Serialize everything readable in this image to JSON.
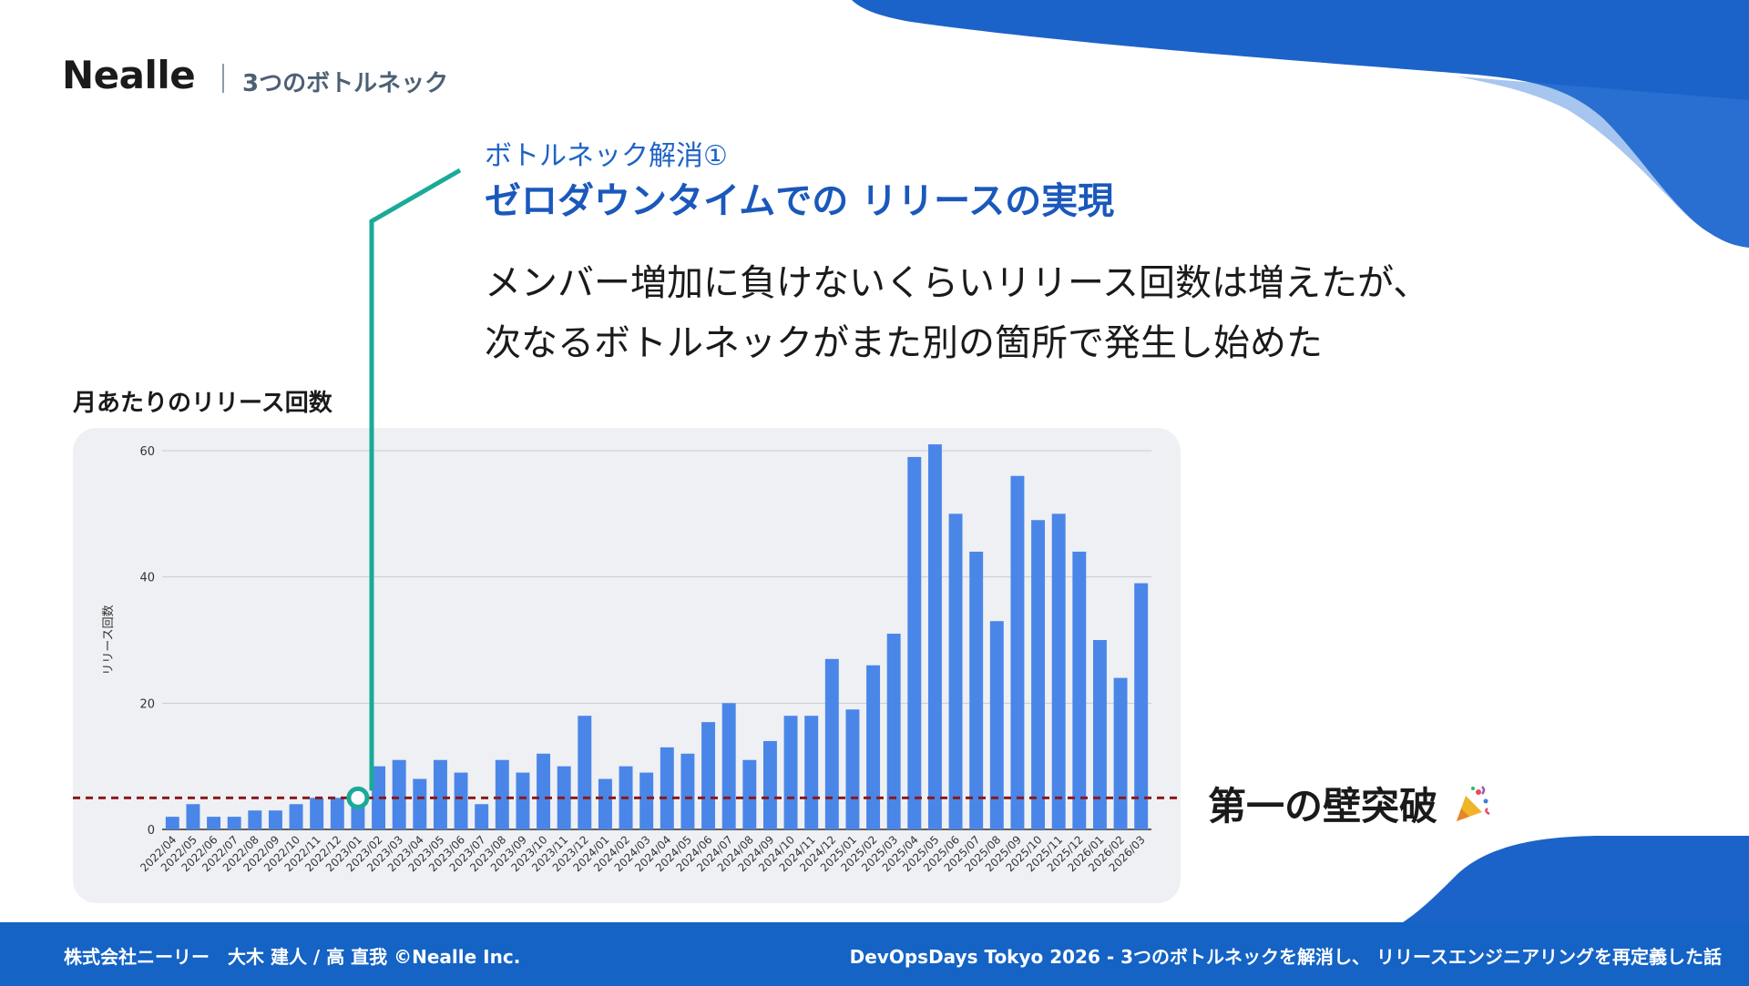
{
  "header": {
    "brand": "Nealle",
    "section": "3つのボトルネック"
  },
  "headline": {
    "pre": "ボトルネック解消①",
    "main": "ゼロダウンタイムでの リリースの実現"
  },
  "body": {
    "line1": "メンバー増加に負けないくらいリリース回数は増えたが、",
    "line2": "次なるボトルネックがまた別の箇所で発生し始めた"
  },
  "callout": {
    "text": "第一の壁突破",
    "icon": "party-popper-icon"
  },
  "footer": {
    "left": "株式会社ニーリー　大木 建人 / 高 直我  ©Nealle Inc.",
    "right": "DevOpsDays Tokyo 2026 -  3つのボトルネックを解消し、 リリースエンジニアリングを再定義した話"
  },
  "colors": {
    "accent": "#1a58bb",
    "bar": "#4a86e8",
    "threshold_line": "#8b1a1a",
    "connector": "#1aaa98",
    "footer": "#1463c5"
  },
  "chart_data": {
    "type": "bar",
    "title": "月あたりのリリース回数",
    "xlabel": "",
    "ylabel": "リリース回数",
    "ylim": [
      0,
      60
    ],
    "yticks": [
      0,
      20,
      40,
      60
    ],
    "grid": true,
    "threshold": 5,
    "highlight_category": "2023/01",
    "categories": [
      "2022/04",
      "2022/05",
      "2022/06",
      "2022/07",
      "2022/08",
      "2022/09",
      "2022/10",
      "2022/11",
      "2022/12",
      "2023/01",
      "2023/02",
      "2023/03",
      "2023/04",
      "2023/05",
      "2023/06",
      "2023/07",
      "2023/08",
      "2023/09",
      "2023/10",
      "2023/11",
      "2023/12",
      "2024/01",
      "2024/02",
      "2024/03",
      "2024/04",
      "2024/05",
      "2024/06",
      "2024/07",
      "2024/08",
      "2024/09",
      "2024/10",
      "2024/11",
      "2024/12",
      "2025/01",
      "2025/02",
      "2025/03",
      "2025/04",
      "2025/05",
      "2025/06",
      "2025/07",
      "2025/08",
      "2025/09",
      "2025/10",
      "2025/11",
      "2025/12",
      "2026/01",
      "2026/02",
      "2026/03"
    ],
    "values": [
      2,
      4,
      2,
      2,
      3,
      3,
      4,
      5,
      5,
      4,
      10,
      11,
      8,
      11,
      9,
      4,
      11,
      9,
      12,
      10,
      18,
      8,
      10,
      9,
      13,
      12,
      17,
      20,
      11,
      14,
      18,
      18,
      27,
      19,
      26,
      31,
      59,
      61,
      50,
      44,
      33,
      56,
      49,
      50,
      44,
      30,
      24,
      39
    ]
  }
}
